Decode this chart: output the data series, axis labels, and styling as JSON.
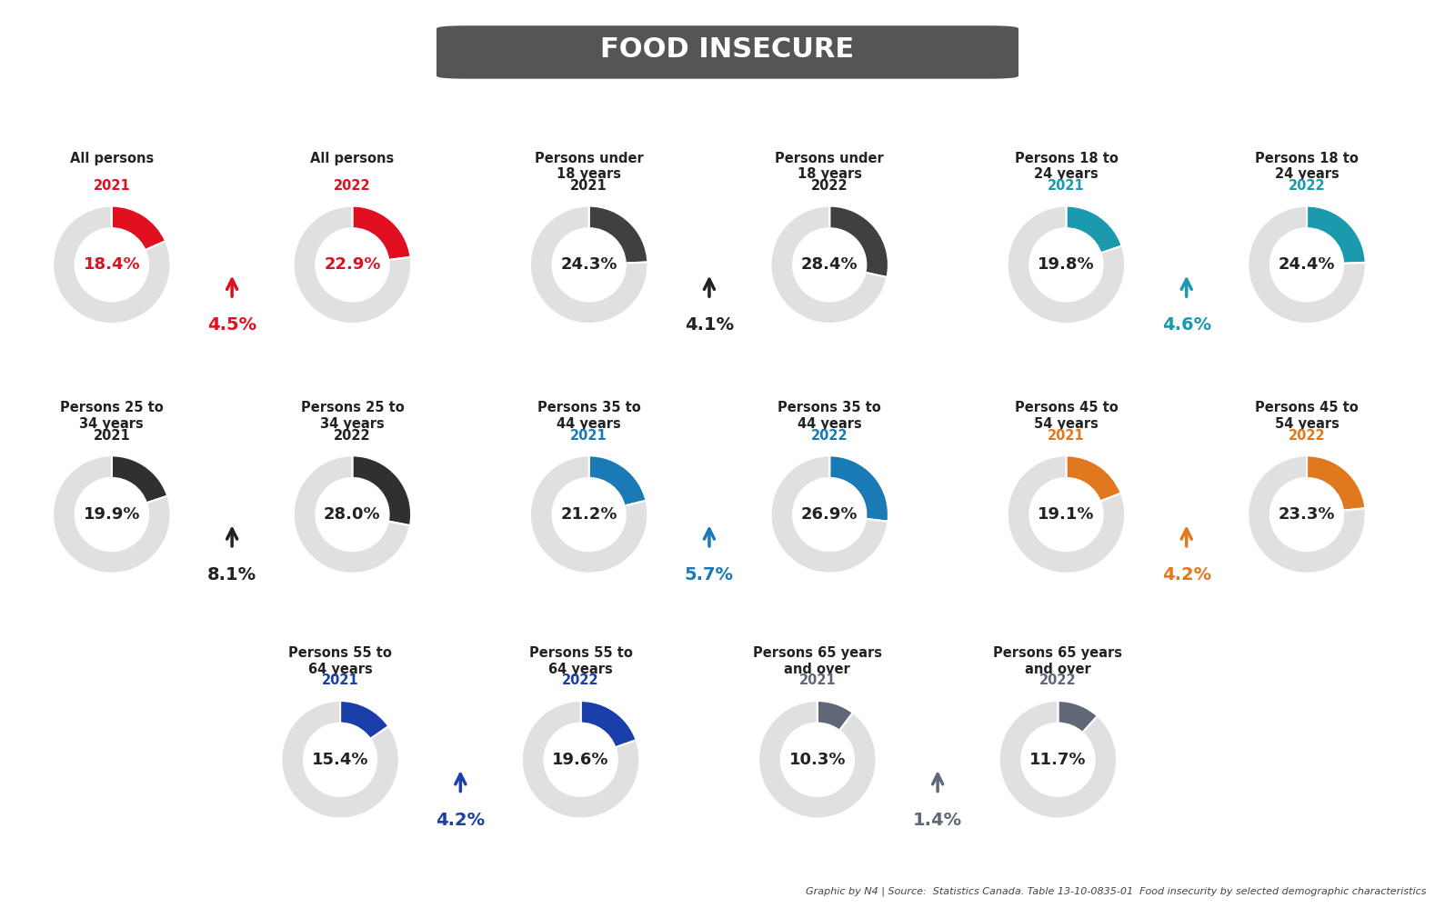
{
  "title": "FOOD INSECURE",
  "title_bg": "#555555",
  "title_color": "#ffffff",
  "background_color": "#ffffff",
  "donut_bg": "#e0e0e0",
  "groups": [
    {
      "label1": "All persons",
      "year1": "2021",
      "val1": 18.4,
      "label2": "All persons",
      "year2": "2022",
      "val2": 22.9,
      "color": "#e01020",
      "year_color": "#e01020",
      "diff": "4.5%",
      "diff_color": "#e01020",
      "row": 0,
      "col": 0
    },
    {
      "label1": "Persons under\n18 years",
      "year1": "2021",
      "val1": 24.3,
      "label2": "Persons under\n18 years",
      "year2": "2022",
      "val2": 28.4,
      "color": "#404040",
      "year_color": "#222222",
      "diff": "4.1%",
      "diff_color": "#222222",
      "row": 0,
      "col": 1
    },
    {
      "label1": "Persons 18 to\n24 years",
      "year1": "2021",
      "val1": 19.8,
      "label2": "Persons 18 to\n24 years",
      "year2": "2022",
      "val2": 24.4,
      "color": "#1a9aac",
      "year_color": "#1a9aac",
      "diff": "4.6%",
      "diff_color": "#1a9aac",
      "row": 0,
      "col": 2
    },
    {
      "label1": "Persons 25 to\n34 years",
      "year1": "2021",
      "val1": 19.9,
      "label2": "Persons 25 to\n34 years",
      "year2": "2022",
      "val2": 28.0,
      "color": "#303030",
      "year_color": "#222222",
      "diff": "8.1%",
      "diff_color": "#222222",
      "row": 1,
      "col": 0
    },
    {
      "label1": "Persons 35 to\n44 years",
      "year1": "2021",
      "val1": 21.2,
      "label2": "Persons 35 to\n44 years",
      "year2": "2022",
      "val2": 26.9,
      "color": "#1a7ab5",
      "year_color": "#1a7ab5",
      "diff": "5.7%",
      "diff_color": "#1a7ab5",
      "row": 1,
      "col": 1
    },
    {
      "label1": "Persons 45 to\n54 years",
      "year1": "2021",
      "val1": 19.1,
      "label2": "Persons 45 to\n54 years",
      "year2": "2022",
      "val2": 23.3,
      "color": "#e07820",
      "year_color": "#e07820",
      "diff": "4.2%",
      "diff_color": "#e07820",
      "row": 1,
      "col": 2
    },
    {
      "label1": "Persons 55 to\n64 years",
      "year1": "2021",
      "val1": 15.4,
      "label2": "Persons 55 to\n64 years",
      "year2": "2022",
      "val2": 19.6,
      "color": "#1a3faa",
      "year_color": "#1a3faa",
      "diff": "4.2%",
      "diff_color": "#1a3faa",
      "row": 2,
      "col": 0
    },
    {
      "label1": "Persons 65 years\nand over",
      "year1": "2021",
      "val1": 10.3,
      "label2": "Persons 65 years\nand over",
      "year2": "2022",
      "val2": 11.7,
      "color": "#606878",
      "year_color": "#606878",
      "diff": "1.4%",
      "diff_color": "#606878",
      "row": 2,
      "col": 1
    }
  ],
  "footer": "Graphic by N4 | Source:  Statistics Canada. Table 13-10-0835-01  Food insecurity by selected demographic characteristics"
}
